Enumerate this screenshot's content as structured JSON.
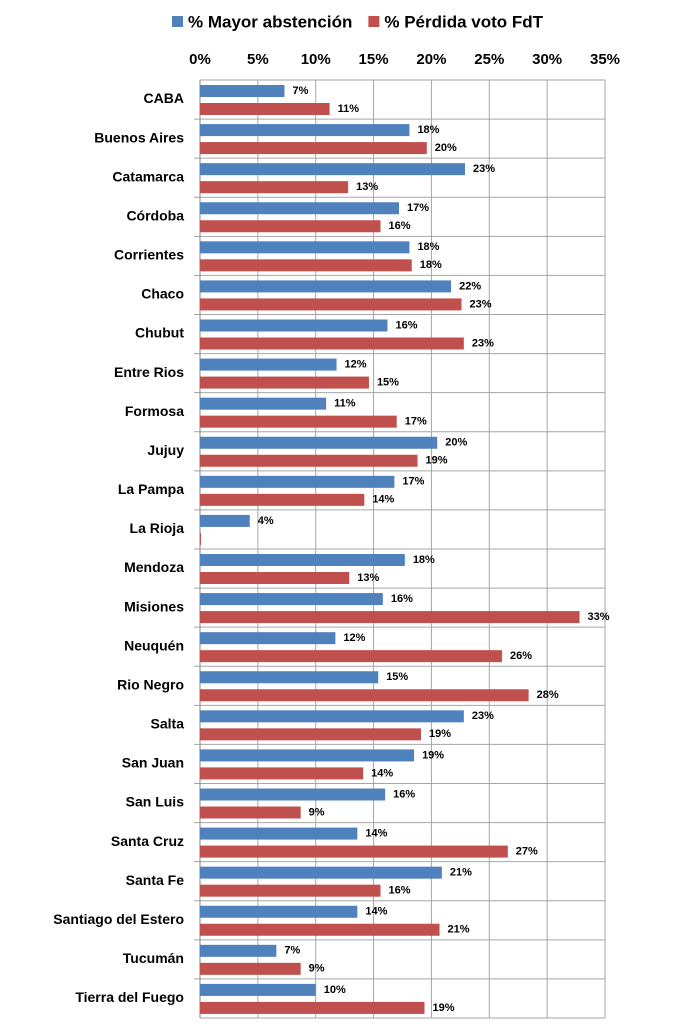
{
  "chart_data": {
    "type": "hbar",
    "categories": [
      "CABA",
      "Buenos Aires",
      "Catamarca",
      "Córdoba",
      "Corrientes",
      "Chaco",
      "Chubut",
      "Entre Rios",
      "Formosa",
      "Jujuy",
      "La Pampa",
      "La Rioja",
      "Mendoza",
      "Misiones",
      "Neuquén",
      "Rio Negro",
      "Salta",
      "San Juan",
      "San Luis",
      "Santa Cruz",
      "Santa Fe",
      "Santiago del Estero",
      "Tucumán",
      "Tierra del Fuego"
    ],
    "series": [
      {
        "name": "% Mayor abstención",
        "color": "#4f81bd",
        "values": [
          7.3,
          18.1,
          22.9,
          17.2,
          18.1,
          21.7,
          16.2,
          11.8,
          10.9,
          20.5,
          16.8,
          4.3,
          17.7,
          15.8,
          11.7,
          15.4,
          22.8,
          18.5,
          16.0,
          13.6,
          20.9,
          13.6,
          6.6,
          10.0
        ],
        "value_labels": [
          "7%",
          "18%",
          "23%",
          "17%",
          "18%",
          "22%",
          "16%",
          "12%",
          "11%",
          "20%",
          "17%",
          "4%",
          "18%",
          "16%",
          "12%",
          "15%",
          "23%",
          "19%",
          "16%",
          "14%",
          "21%",
          "14%",
          "7%",
          "10%"
        ]
      },
      {
        "name": "% Pérdida voto FdT",
        "color": "#c0504d",
        "values": [
          11.2,
          19.6,
          12.8,
          15.6,
          18.3,
          22.6,
          22.8,
          14.6,
          17.0,
          18.8,
          14.2,
          0,
          12.9,
          32.8,
          26.1,
          28.4,
          19.1,
          14.1,
          8.7,
          26.6,
          15.6,
          20.7,
          8.7,
          19.4
        ],
        "value_labels": [
          "11%",
          "20%",
          "13%",
          "16%",
          "18%",
          "23%",
          "23%",
          "15%",
          "17%",
          "19%",
          "14%",
          null,
          "13%",
          "33%",
          "26%",
          "28%",
          "19%",
          "14%",
          "9%",
          "27%",
          "16%",
          "21%",
          "9%",
          "19%"
        ]
      }
    ],
    "xlim": [
      0,
      35
    ],
    "xticks": [
      {
        "value": 0,
        "label": "0%"
      },
      {
        "value": 5,
        "label": "5%"
      },
      {
        "value": 10,
        "label": "10%"
      },
      {
        "value": 15,
        "label": "15%"
      },
      {
        "value": 20,
        "label": "20%"
      },
      {
        "value": 25,
        "label": "25%"
      },
      {
        "value": 30,
        "label": "30%"
      },
      {
        "value": 35,
        "label": "35%"
      }
    ],
    "grid": true,
    "legend": "top"
  }
}
